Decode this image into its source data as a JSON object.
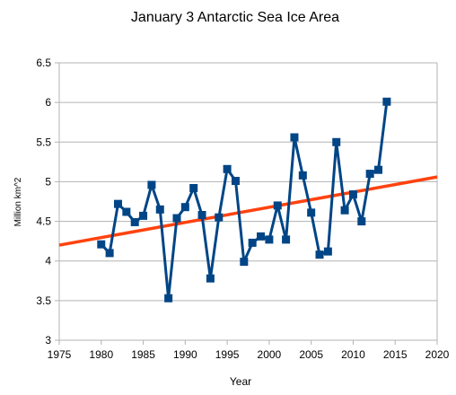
{
  "chart_data": {
    "type": "line",
    "title": "January 3 Antarctic Sea Ice Area",
    "xlabel": "Year",
    "ylabel": "Million km^2",
    "xlim": [
      1975,
      2020
    ],
    "ylim": [
      3,
      6.5
    ],
    "xticks": [
      1975,
      1980,
      1985,
      1990,
      1995,
      2000,
      2005,
      2010,
      2015,
      2020
    ],
    "yticks": [
      3,
      3.5,
      4,
      4.5,
      5,
      5.5,
      6,
      6.5
    ],
    "grid": "horizontal",
    "legend": "none",
    "series": [
      {
        "marker": "square",
        "color": "#004586",
        "x": [
          1980,
          1981,
          1982,
          1983,
          1984,
          1985,
          1986,
          1987,
          1988,
          1989,
          1990,
          1991,
          1992,
          1993,
          1994,
          1995,
          1996,
          1997,
          1998,
          1999,
          2000,
          2001,
          2002,
          2003,
          2004,
          2005,
          2006,
          2007,
          2008,
          2009,
          2010,
          2011,
          2012,
          2013,
          2014
        ],
        "y": [
          4.21,
          4.1,
          4.72,
          4.62,
          4.49,
          4.57,
          4.96,
          4.65,
          3.53,
          4.54,
          4.68,
          4.92,
          4.58,
          3.78,
          4.55,
          5.16,
          5.01,
          3.99,
          4.23,
          4.31,
          4.27,
          4.7,
          4.27,
          5.56,
          5.08,
          4.61,
          4.08,
          4.12,
          5.5,
          4.64,
          4.84,
          4.5,
          5.1,
          5.15,
          6.01
        ]
      }
    ],
    "trendline": {
      "color": "#ff420e",
      "x": [
        1975,
        2020
      ],
      "y": [
        4.2,
        5.06
      ]
    }
  }
}
